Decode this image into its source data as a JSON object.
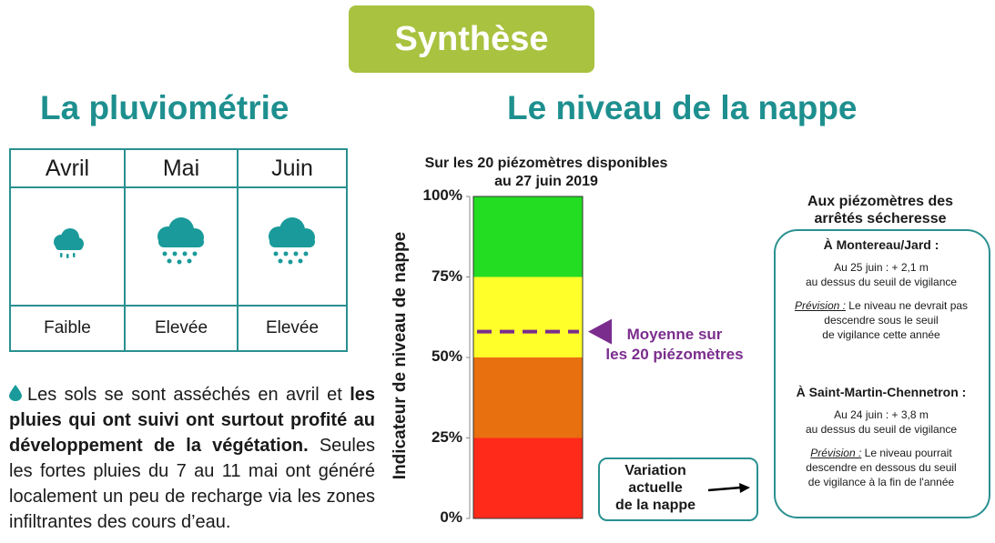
{
  "badge": "Synthèse",
  "headings": {
    "left": "La pluviométrie",
    "right": "Le niveau de la nappe"
  },
  "rain_table": {
    "months": [
      "Avril",
      "Mai",
      "Juin"
    ],
    "levels": [
      "Faible",
      "Elevée",
      "Elevée"
    ],
    "icons": [
      "cloud-light-rain-icon",
      "cloud-heavy-rain-icon",
      "cloud-heavy-rain-icon"
    ]
  },
  "paragraph": {
    "p1": "Les sols se sont asséchés en avril et ",
    "bold": "les pluies qui ont suivi ont surtout profité au développement de la végétation.",
    "p2": " Seules les fortes pluies du 7 au 11 mai ont généré localement un peu de recharge via les zones infiltrantes des cours d’eau."
  },
  "chart_data": {
    "type": "bar",
    "title_line1": "Sur les 20 piézomètres disponibles",
    "title_line2": "au 27 juin 2019",
    "ylabel": "Indicateur de niveau de nappe",
    "ylim": [
      0,
      100
    ],
    "yticks": [
      "0%",
      "25%",
      "50%",
      "75%",
      "100%"
    ],
    "bands": [
      {
        "from": 0,
        "to": 25,
        "color": "#ff2a1a"
      },
      {
        "from": 25,
        "to": 50,
        "color": "#e8700f"
      },
      {
        "from": 50,
        "to": 75,
        "color": "#ffff2a"
      },
      {
        "from": 75,
        "to": 100,
        "color": "#22dd22"
      }
    ],
    "mean_value": 58,
    "mean_color": "#7b2d8e",
    "mean_label_line1": "Moyenne sur",
    "mean_label_line2": "les 20 piézomètres"
  },
  "variation": {
    "line1": "Variation",
    "line2": "actuelle",
    "line3": "de la nappe"
  },
  "right_panel": {
    "title_line1": "Aux piézomètres des",
    "title_line2": "arrêtés sécheresse",
    "site1": {
      "name": "À Montereau/Jard :",
      "line1": "Au 25 juin : + 2,1 m",
      "line2": "au dessus du seuil de vigilance",
      "prev_label": "Prévision :",
      "prev_line1": " Le niveau ne devrait pas",
      "prev_line2": "descendre sous le seuil",
      "prev_line3": "de vigilance cette année"
    },
    "site2": {
      "name": "À Saint-Martin-Chennetron :",
      "line1": "Au 24 juin : + 3,8 m",
      "line2": "au dessus du seuil de vigilance",
      "prev_label": "Prévision :",
      "prev_line1": " Le niveau pourrait",
      "prev_line2": "descendre en dessous du seuil",
      "prev_line3": "de vigilance à la fin de l'année"
    }
  }
}
